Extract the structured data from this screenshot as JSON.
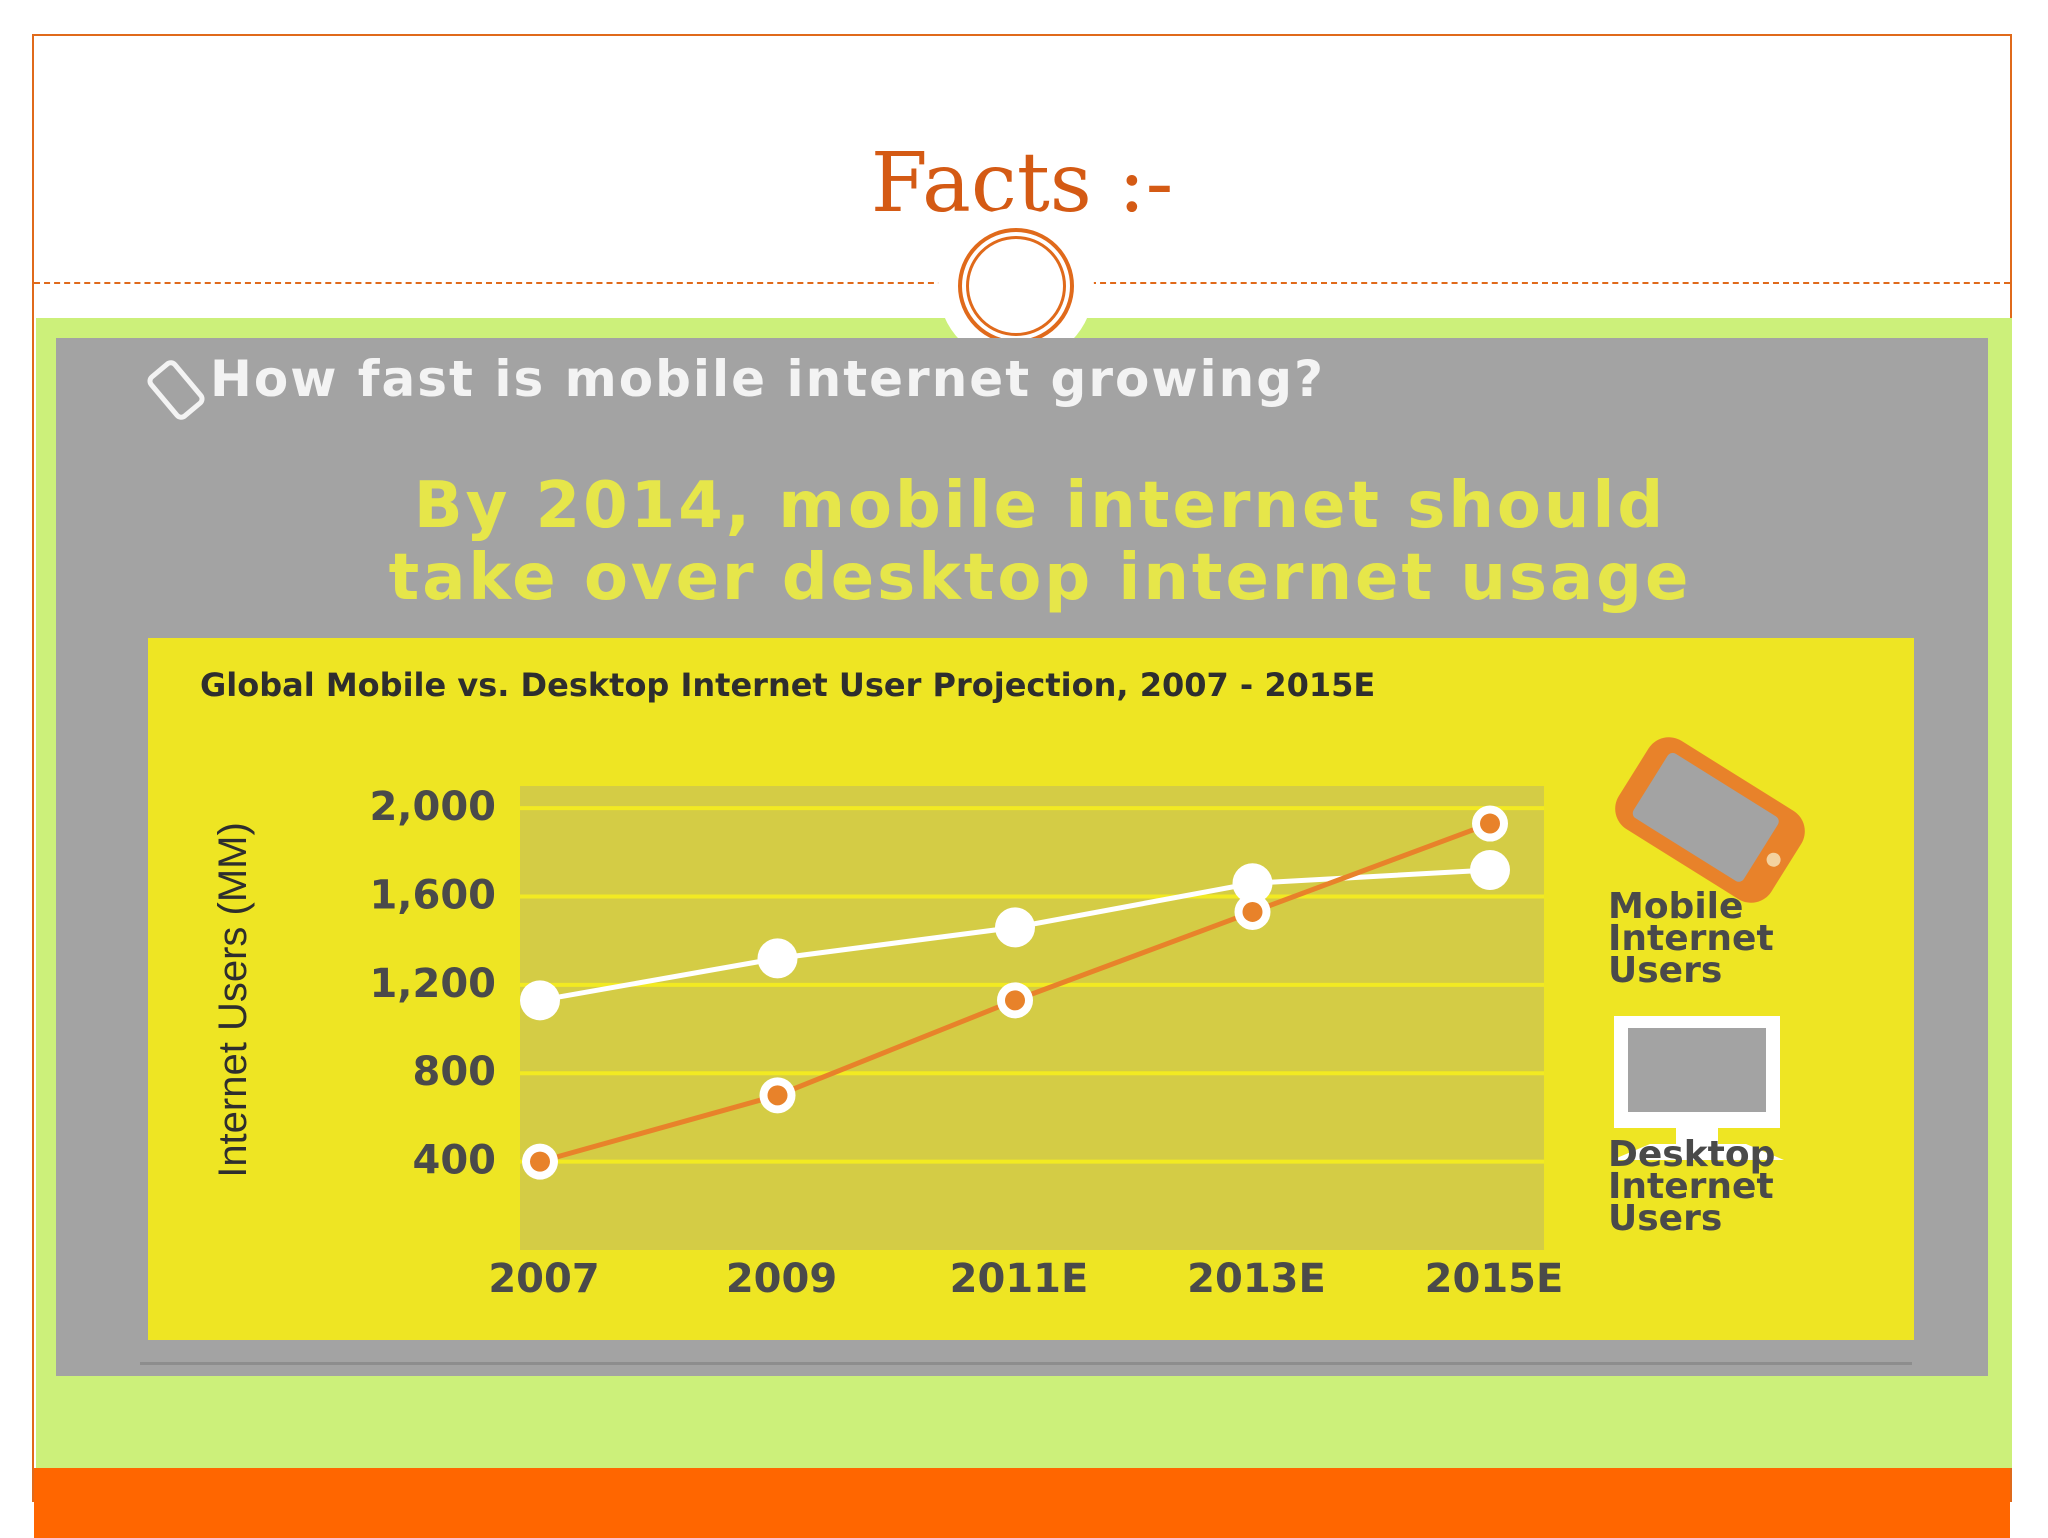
{
  "slide": {
    "title": "Facts :-"
  },
  "infographic": {
    "question": "How fast is mobile internet growing?",
    "headline_line1": "By 2014, mobile internet should",
    "headline_line2": "take over desktop internet usage"
  },
  "colors": {
    "accent_orange": "#ff6600",
    "title_orange": "#d45a14",
    "panel_green": "#ccf07a",
    "card_yellow": "#eee523",
    "plot_olive": "#d4cc45",
    "mobile_series": "#e8822a",
    "desktop_series": "#ffffff"
  },
  "chart_data": {
    "type": "line",
    "title": "Global Mobile vs. Desktop Internet User Projection, 2007 - 2015E",
    "xlabel": "",
    "ylabel": "Internet Users (MM)",
    "categories": [
      "2007",
      "2009",
      "2011E",
      "2013E",
      "2015E"
    ],
    "y_ticks": [
      "2,000",
      "1,600",
      "1,200",
      "800",
      "400"
    ],
    "y_tick_values": [
      2000,
      1600,
      1200,
      800,
      400
    ],
    "ylim": [
      0,
      2100
    ],
    "grid": true,
    "legend_position": "right",
    "series": [
      {
        "name": "Mobile Internet Users",
        "legend_lines": [
          "Mobile",
          "Internet",
          "Users"
        ],
        "icon": "smartphone-icon",
        "values": [
          400,
          700,
          1130,
          1530,
          1930
        ]
      },
      {
        "name": "Desktop Internet Users",
        "legend_lines": [
          "Desktop",
          "Internet",
          "Users"
        ],
        "icon": "desktop-monitor-icon",
        "values": [
          1130,
          1320,
          1460,
          1660,
          1720
        ]
      }
    ]
  }
}
